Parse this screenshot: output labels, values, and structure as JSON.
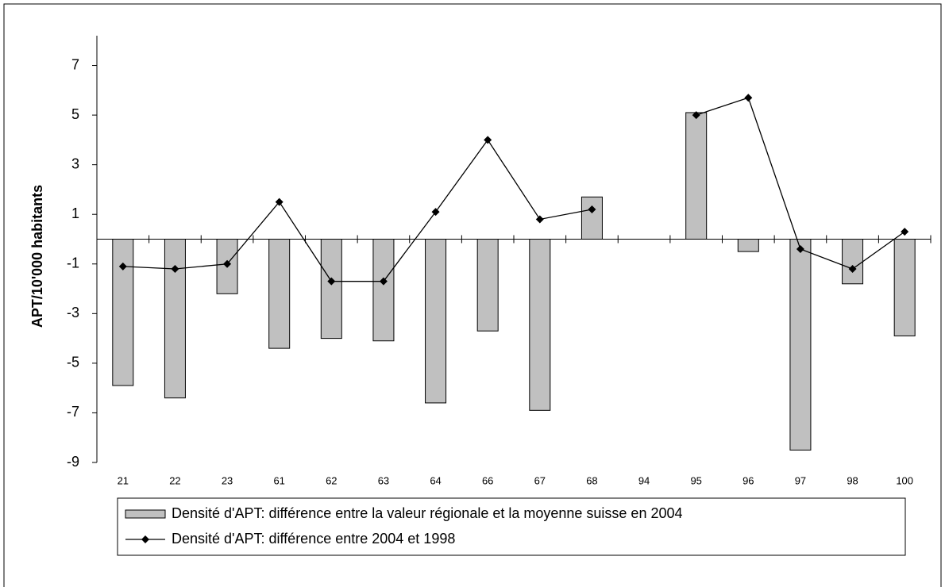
{
  "chart_data": {
    "type": "bar_line",
    "ylabel": "APT/10'000 habitants",
    "categories": [
      "21",
      "22",
      "23",
      "61",
      "62",
      "63",
      "64",
      "66",
      "67",
      "68",
      "94",
      "95",
      "96",
      "97",
      "98",
      "100"
    ],
    "series": [
      {
        "name": "Densité d'APT: différence entre la valeur régionale et la moyenne suisse en 2004",
        "type": "bar",
        "color": "#c0c0c0",
        "values": [
          -5.9,
          -6.4,
          -2.2,
          -4.4,
          -4.0,
          -4.1,
          -6.6,
          -3.7,
          -6.9,
          1.7,
          null,
          5.1,
          -0.5,
          -8.5,
          -1.8,
          -3.9
        ]
      },
      {
        "name": "Densité d'APT: différence entre 2004 et 1998",
        "type": "line",
        "color": "#000000",
        "values": [
          -1.1,
          -1.2,
          -1.0,
          1.5,
          -1.7,
          -1.7,
          1.1,
          4.0,
          0.8,
          1.2,
          null,
          5.0,
          5.7,
          -0.4,
          -1.2,
          0.3
        ]
      }
    ],
    "ylim": [
      -9,
      8.2
    ],
    "yticks": [
      7,
      5,
      3,
      1,
      -1,
      -3,
      -5,
      -7,
      -9
    ]
  }
}
